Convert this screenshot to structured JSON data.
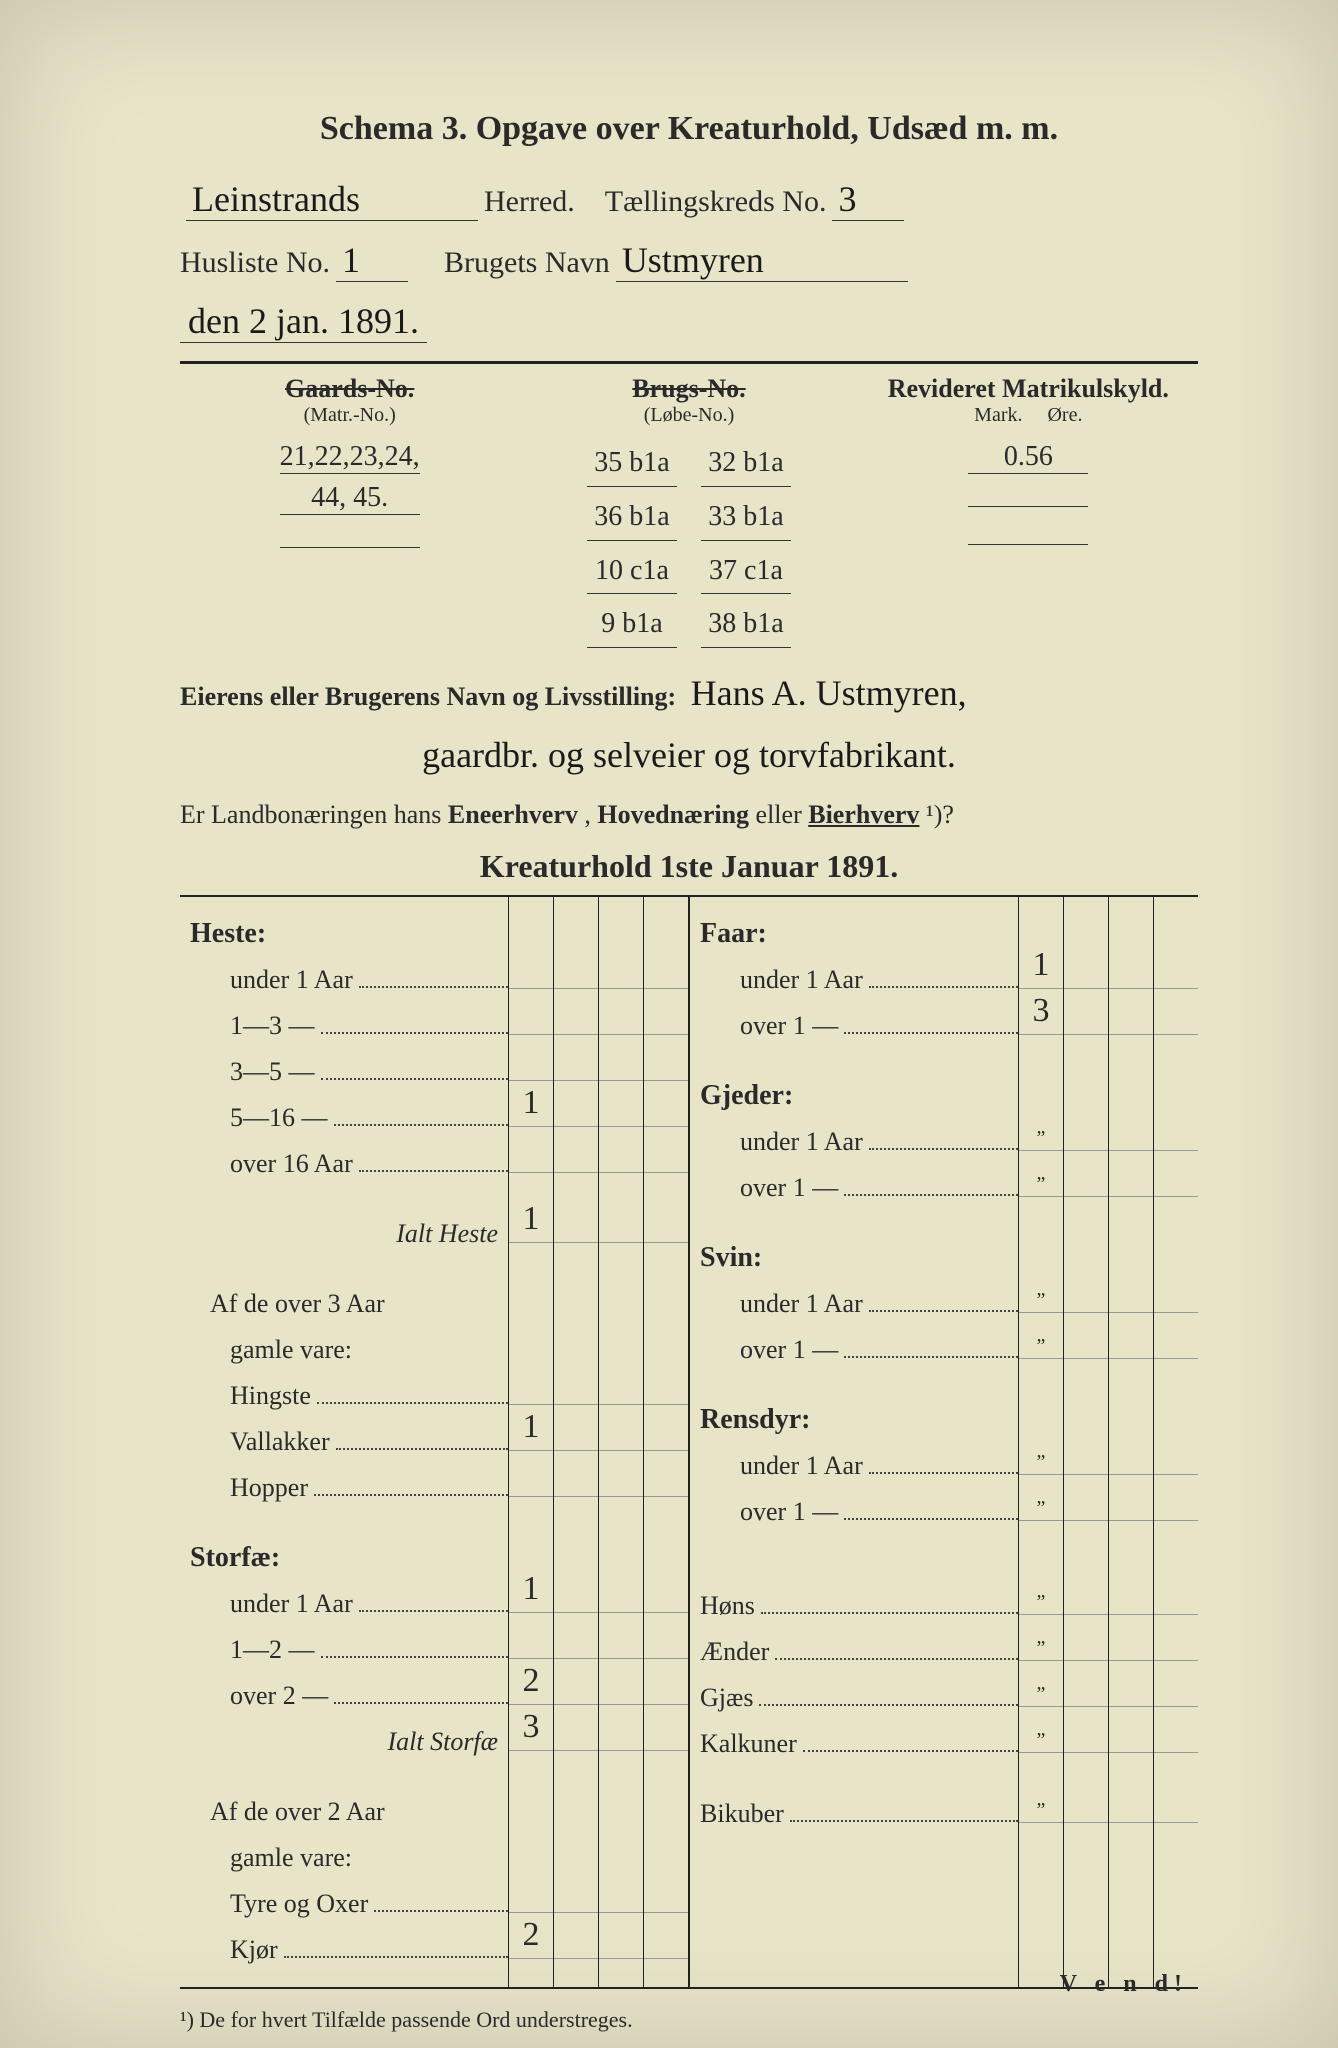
{
  "palette": {
    "page_bg": "#e8e4c8",
    "ink": "#2a2a2a",
    "hand_ink": "#1a1a1a",
    "outer_bg": "#3a3a3a"
  },
  "title": "Schema 3.  Opgave over Kreaturhold, Udsæd m. m.",
  "header": {
    "herred_hand": "Leinstrands",
    "herred_label": "Herred.",
    "tk_label": "Tællingskreds No.",
    "tk_value": "3",
    "husliste_label": "Husliste No.",
    "husliste_value": "1",
    "brugets_label": "Brugets Navn",
    "brugets_value": "Ustmyren",
    "date_hand": "den 2 jan. 1891."
  },
  "matrikul": {
    "gaards_head": "Gaards-No.",
    "gaards_sub": "(Matr.-No.)",
    "brugs_head": "Brugs-No.",
    "brugs_sub": "(Løbe-No.)",
    "revideret_head": "Revideret Matrikulskyld.",
    "mark_label": "Mark.",
    "ore_label": "Øre.",
    "gaards_values": [
      "21,22,23,24,",
      "44, 45."
    ],
    "brugs_values_colA": [
      "35 b1a",
      "36 b1a",
      "10 c1a",
      "9 b1a"
    ],
    "brugs_values_colB": [
      "32 b1a",
      "33 b1a",
      "37 c1a",
      "38 b1a"
    ],
    "skyld_value": "0.56"
  },
  "owner": {
    "label": "Eierens eller Brugerens Navn og Livsstilling:",
    "value_line1": "Hans A. Ustmyren,",
    "value_line2": "gaardbr. og selveier og torvfabrikant."
  },
  "question": {
    "prefix": "Er Landbonæringen hans ",
    "opt1": "Eneerhverv",
    "sep": ", ",
    "opt2": "Hovednæring",
    "or": " eller ",
    "opt3": "Bierhverv",
    "suffix": "¹)?"
  },
  "kreatur_title": "Kreaturhold 1ste Januar 1891.",
  "left_rows": [
    {
      "type": "head",
      "label": "Heste:"
    },
    {
      "type": "sub",
      "label": "under 1 Aar",
      "val": ""
    },
    {
      "type": "sub",
      "label": "1—3   —",
      "val": ""
    },
    {
      "type": "sub",
      "label": "3—5   —",
      "val": ""
    },
    {
      "type": "sub",
      "label": "5—16  —",
      "val": "1"
    },
    {
      "type": "sub",
      "label": "over 16 Aar",
      "val": ""
    },
    {
      "type": "spacer"
    },
    {
      "type": "ital",
      "label": "Ialt Heste",
      "val": "1"
    },
    {
      "type": "spacer"
    },
    {
      "type": "note",
      "label": "Af de over 3 Aar"
    },
    {
      "type": "note2",
      "label": "gamle vare:"
    },
    {
      "type": "sub",
      "label": "Hingste",
      "val": ""
    },
    {
      "type": "sub",
      "label": "Vallakker",
      "val": "1"
    },
    {
      "type": "sub",
      "label": "Hopper",
      "val": ""
    },
    {
      "type": "spacer"
    },
    {
      "type": "head",
      "label": "Storfæ:"
    },
    {
      "type": "sub",
      "label": "under 1 Aar",
      "val": "1"
    },
    {
      "type": "sub",
      "label": "1—2   —",
      "val": ""
    },
    {
      "type": "sub",
      "label": "over 2   —",
      "val": "2"
    },
    {
      "type": "ital",
      "label": "Ialt Storfæ",
      "val": "3"
    },
    {
      "type": "spacer"
    },
    {
      "type": "note",
      "label": "Af de over 2 Aar"
    },
    {
      "type": "note2",
      "label": "gamle vare:"
    },
    {
      "type": "sub",
      "label": "Tyre og Oxer",
      "val": ""
    },
    {
      "type": "sub",
      "label": "Kjør",
      "val": "2"
    }
  ],
  "right_rows": [
    {
      "type": "head",
      "label": "Faar:"
    },
    {
      "type": "sub",
      "label": "under 1 Aar",
      "val": "1"
    },
    {
      "type": "sub",
      "label": "over 1   —",
      "val": "3"
    },
    {
      "type": "spacer"
    },
    {
      "type": "head",
      "label": "Gjeder:"
    },
    {
      "type": "sub",
      "label": "under 1 Aar",
      "val": "„"
    },
    {
      "type": "sub",
      "label": "over 1   —",
      "val": "„"
    },
    {
      "type": "spacer"
    },
    {
      "type": "head",
      "label": "Svin:"
    },
    {
      "type": "sub",
      "label": "under 1 Aar",
      "val": "„"
    },
    {
      "type": "sub",
      "label": "over 1   —",
      "val": "„"
    },
    {
      "type": "spacer"
    },
    {
      "type": "head",
      "label": "Rensdyr:"
    },
    {
      "type": "sub",
      "label": "under 1 Aar",
      "val": "„"
    },
    {
      "type": "sub",
      "label": "over 1   —",
      "val": "„"
    },
    {
      "type": "spacer"
    },
    {
      "type": "spacer"
    },
    {
      "type": "plain",
      "label": "Høns",
      "val": "„"
    },
    {
      "type": "plain",
      "label": "Ænder",
      "val": "„"
    },
    {
      "type": "plain",
      "label": "Gjæs",
      "val": "„"
    },
    {
      "type": "plain",
      "label": "Kalkuner",
      "val": "„"
    },
    {
      "type": "spacer"
    },
    {
      "type": "plain",
      "label": "Bikuber",
      "val": "„"
    }
  ],
  "footnote": "¹) De for hvert Tilfælde passende Ord understreges.",
  "vend": "V e n d!"
}
